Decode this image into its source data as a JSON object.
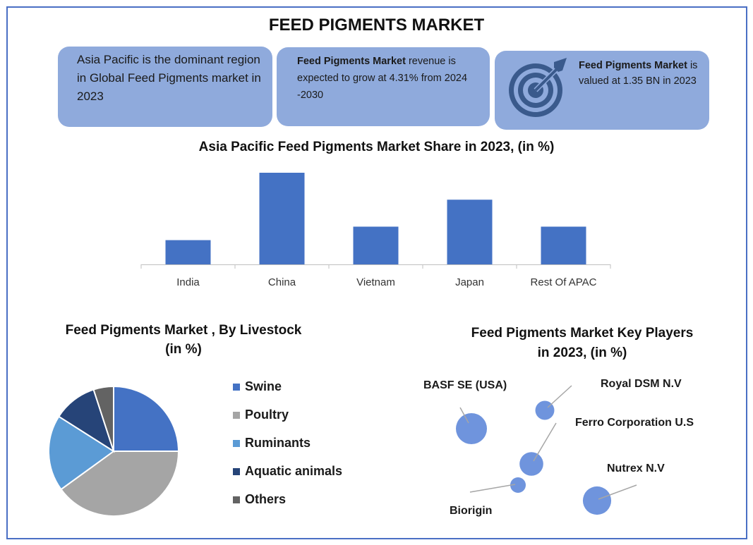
{
  "title": "FEED PIGMENTS MARKET",
  "cards": {
    "region_text": "Asia Pacific is the dominant region in Global Feed Pigments market in 2023",
    "growth_bold": "Feed Pigments Market",
    "growth_rest": " revenue is expected to grow at 4.31% from 2024 -2030",
    "value_bold": "Feed Pigments Market",
    "value_rest": " is valued at 1.35 BN in 2023",
    "value_icon": "target-icon"
  },
  "colors": {
    "accent": "#4472c4",
    "card": "#8faadc",
    "frame": "#4a6fc4",
    "bubble": "#6f94dd"
  },
  "chart_data": [
    {
      "type": "bar",
      "title": "Asia Pacific Feed Pigments  Market Share in 2023,  (in %)",
      "categories": [
        "India",
        "China",
        "Vietnam",
        "Japan",
        "Rest Of APAC"
      ],
      "values": [
        9,
        34,
        14,
        24,
        14
      ],
      "ylim": [
        0,
        34
      ],
      "grid": false,
      "color": "#4472c4"
    },
    {
      "type": "pie",
      "title": "Feed Pigments  Market , By Livestock",
      "subtitle": "(in %)",
      "categories": [
        "Swine",
        "Poultry",
        "Ruminants",
        "Aquatic animals",
        "Others"
      ],
      "values": [
        25,
        40,
        19,
        11,
        5
      ],
      "colors": [
        "#4472c4",
        "#a5a5a5",
        "#5b9bd5",
        "#264478",
        "#636363"
      ],
      "legend": "right"
    },
    {
      "type": "scatter",
      "title": "Feed Pigments  Market Key Players",
      "subtitle": "in 2023, (in %)",
      "points": [
        {
          "name": "BASF SE (USA)",
          "value": 24
        },
        {
          "name": "Royal DSM N.V",
          "value": 9
        },
        {
          "name": "Ferro Corporation U.S",
          "value": 14
        },
        {
          "name": "Biorigin",
          "value": 6
        },
        {
          "name": "Nutrex N.V",
          "value": 20
        }
      ]
    }
  ]
}
